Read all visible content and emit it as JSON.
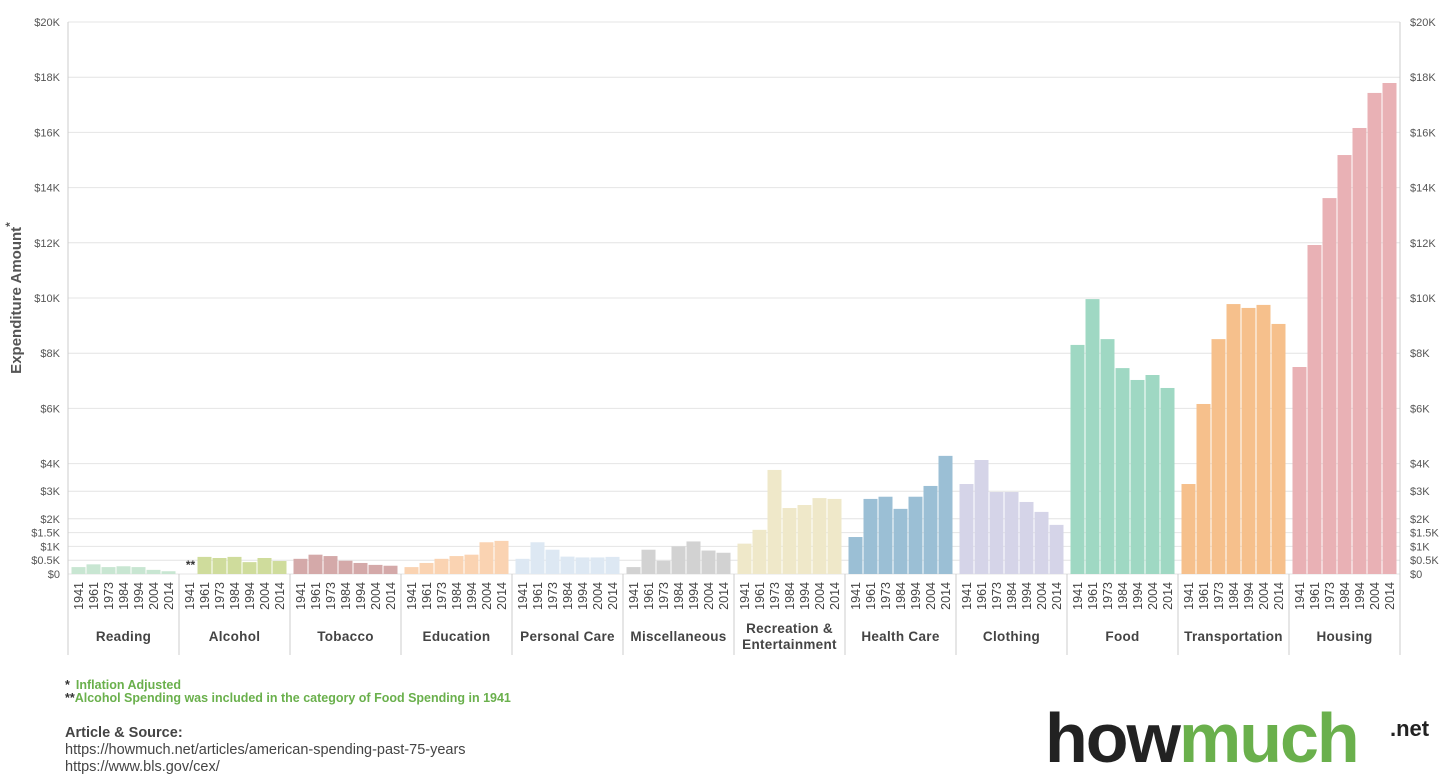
{
  "chart_data": {
    "type": "grouped-bar",
    "y_label": "Expenditure Amount",
    "categories": [
      "1941",
      "1961",
      "1973",
      "1984",
      "1994",
      "2004",
      "2014"
    ],
    "series": [
      {
        "name": "Reading",
        "color": "#c8e6d2",
        "values": [
          250,
          350,
          250,
          280,
          250,
          150,
          100
        ]
      },
      {
        "name": "Alcohol",
        "color": "#cfdc9c",
        "values": [
          null,
          620,
          580,
          620,
          430,
          580,
          470
        ]
      },
      {
        "name": "Tobacco",
        "color": "#d4a9a9",
        "values": [
          550,
          700,
          650,
          480,
          400,
          330,
          300
        ]
      },
      {
        "name": "Education",
        "color": "#fad3b2",
        "values": [
          250,
          400,
          550,
          650,
          700,
          1150,
          1200
        ]
      },
      {
        "name": "Personal Care",
        "color": "#dde8f3",
        "values": [
          550,
          1150,
          880,
          630,
          600,
          600,
          620
        ]
      },
      {
        "name": "Miscellaneous",
        "color": "#d2d2d2",
        "values": [
          250,
          880,
          480,
          1000,
          1180,
          850,
          770
        ]
      },
      {
        "name": "Recreation & Entertainment",
        "color": "#efe8c9",
        "values": [
          1100,
          1600,
          3770,
          2390,
          2500,
          2750,
          2720
        ]
      },
      {
        "name": "Health Care",
        "color": "#9bbfd5",
        "values": [
          1340,
          2720,
          2800,
          2360,
          2800,
          3190,
          4280
        ]
      },
      {
        "name": "Clothing",
        "color": "#d5d4e8",
        "values": [
          3260,
          4130,
          2970,
          2970,
          2610,
          2250,
          1780
        ]
      },
      {
        "name": "Food",
        "color": "#9fd8c3",
        "values": [
          8300,
          9960,
          8510,
          7460,
          7030,
          7210,
          6740
        ]
      },
      {
        "name": "Transportation",
        "color": "#f6c08c",
        "values": [
          3260,
          6160,
          8510,
          9780,
          9640,
          9750,
          9060
        ]
      },
      {
        "name": "Housing",
        "color": "#e9b1b5",
        "values": [
          7500,
          11920,
          13620,
          15180,
          16160,
          17430,
          17790
        ]
      }
    ],
    "ylim": [
      0,
      20000
    ],
    "yticks": [
      {
        "value": 0,
        "label": "$0"
      },
      {
        "value": 500,
        "label": "$0.5K"
      },
      {
        "value": 1000,
        "label": "$1K"
      },
      {
        "value": 1500,
        "label": "$1.5K"
      },
      {
        "value": 2000,
        "label": "$2K"
      },
      {
        "value": 3000,
        "label": "$3K"
      },
      {
        "value": 4000,
        "label": "$4K"
      },
      {
        "value": 6000,
        "label": "$6K"
      },
      {
        "value": 8000,
        "label": "$8K"
      },
      {
        "value": 10000,
        "label": "$10K"
      },
      {
        "value": 12000,
        "label": "$12K"
      },
      {
        "value": 14000,
        "label": "$14K"
      },
      {
        "value": 16000,
        "label": "$16K"
      },
      {
        "value": 18000,
        "label": "$18K"
      },
      {
        "value": 20000,
        "label": "$20K"
      }
    ],
    "grid": true,
    "notes": [
      {
        "mark": "*",
        "text": "Inflation Adjusted"
      },
      {
        "mark": "**",
        "text": "Alcohol Spending was included in the category of Food Spending in 1941"
      }
    ]
  },
  "source": {
    "heading": "Article & Source:",
    "links": [
      "https://howmuch.net/articles/american-spending-past-75-years",
      "https://www.bls.gov/cex/"
    ]
  },
  "logo": {
    "first": "how",
    "second": "much",
    "suffix": ".net"
  }
}
